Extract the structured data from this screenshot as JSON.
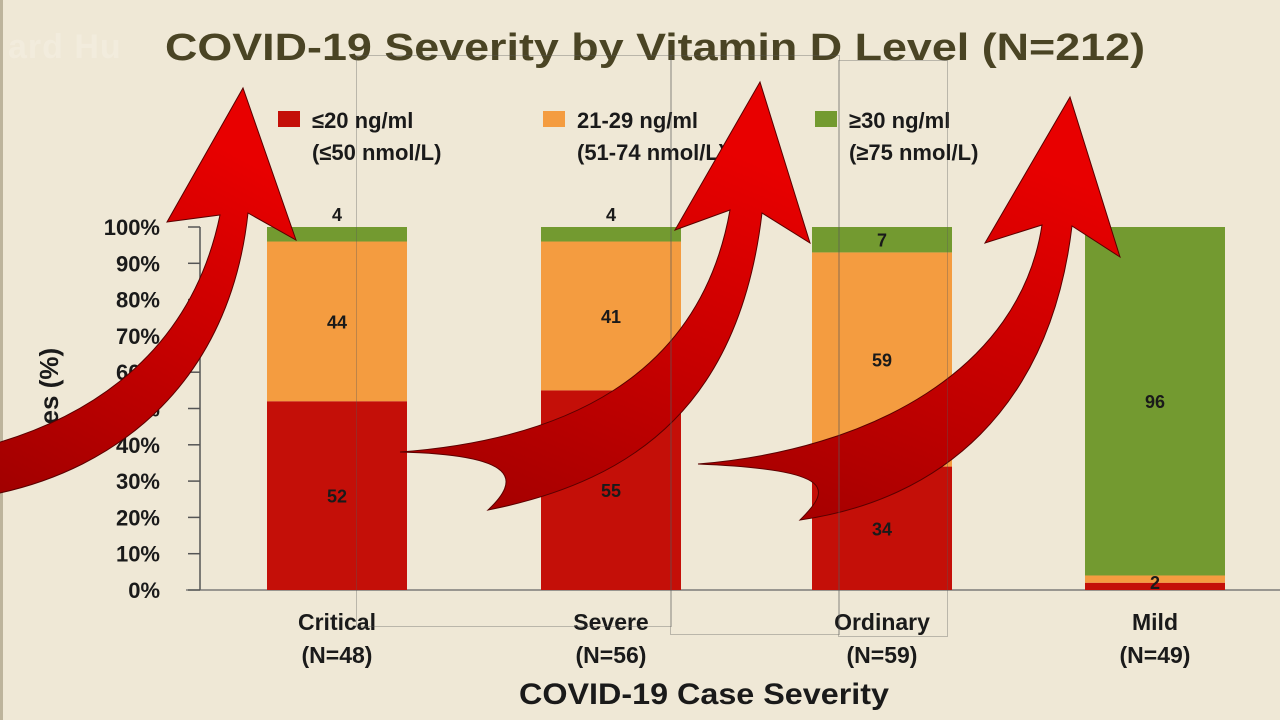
{
  "watermark": "ard Hu",
  "chart_data": {
    "type": "bar",
    "stacked": true,
    "title": "COVID-19 Severity by Vitamin D Level (N=212)",
    "xlabel": "COVID-19 Case Severity",
    "ylabel": "Cases (%)",
    "ylim": [
      0,
      100
    ],
    "yticks": [
      "0%",
      "10%",
      "20%",
      "30%",
      "40%",
      "50%",
      "60%",
      "70%",
      "80%",
      "90%",
      "100%"
    ],
    "legend_position": "top",
    "categories": [
      {
        "name": "Critical",
        "n": "(N=48)"
      },
      {
        "name": "Severe",
        "n": "(N=56)"
      },
      {
        "name": "Ordinary",
        "n": "(N=59)"
      },
      {
        "name": "Mild",
        "n": "(N=49)"
      }
    ],
    "series": [
      {
        "name": "≤20 ng/ml",
        "sub": "(≤50 nmol/L)",
        "color": "#c40f08",
        "values": [
          52,
          55,
          34,
          2
        ],
        "labels": [
          "52",
          "55",
          "34",
          ""
        ]
      },
      {
        "name": "21-29 ng/ml",
        "sub": "(51-74 nmol/L)",
        "color": "#f49c40",
        "values": [
          44,
          41,
          59,
          2
        ],
        "labels": [
          "44",
          "41",
          "59",
          "2"
        ]
      },
      {
        "name": "≥30 ng/ml",
        "sub": "(≥75 nmol/L)",
        "color": "#739a30",
        "values": [
          4,
          4,
          7,
          96
        ],
        "labels": [
          "4",
          "4",
          "7",
          "96"
        ]
      }
    ]
  },
  "annotations": {
    "arrows": [
      {
        "name": "red-curved-arrow-1",
        "color": "#d40000"
      },
      {
        "name": "red-curved-arrow-2",
        "color": "#d40000"
      },
      {
        "name": "red-curved-arrow-3",
        "color": "#d40000"
      }
    ]
  }
}
